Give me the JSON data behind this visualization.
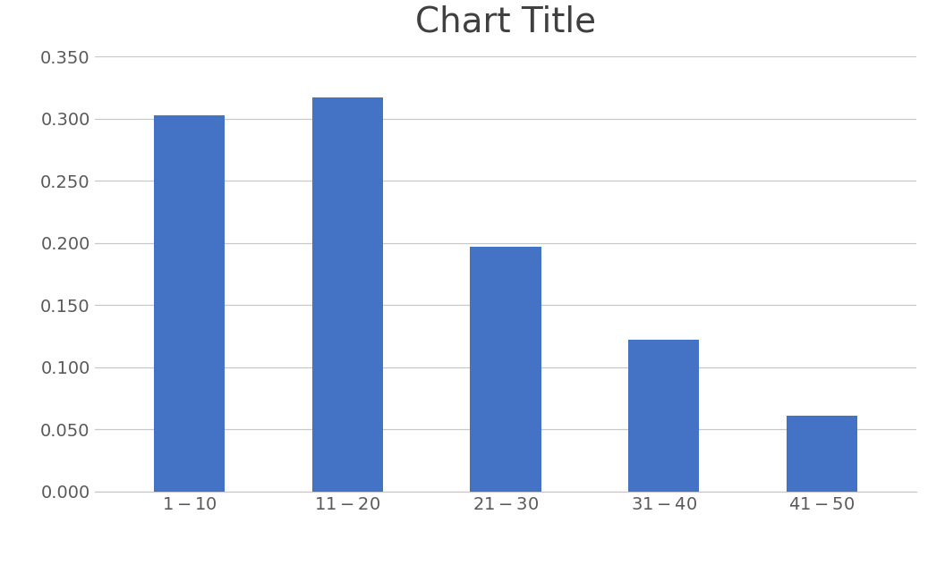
{
  "title": "Chart Title",
  "title_fontsize": 28,
  "title_color": "#404040",
  "categories": [
    "$1 - $10",
    "$11 - $20",
    "$21 - $30",
    "$31 - $40",
    "$41 - $50"
  ],
  "values": [
    0.303,
    0.317,
    0.197,
    0.122,
    0.061
  ],
  "bar_color": "#4472C4",
  "ylim": [
    0,
    0.35
  ],
  "yticks": [
    0.0,
    0.05,
    0.1,
    0.15,
    0.2,
    0.25,
    0.3,
    0.35
  ],
  "ytick_labels": [
    "0.000",
    "0.050",
    "0.100",
    "0.150",
    "0.200",
    "0.250",
    "0.300",
    "0.350"
  ],
  "background_color": "#FFFFFF",
  "grid_color": "#C8C8C8",
  "tick_color": "#595959",
  "tick_fontsize": 14,
  "bar_width": 0.45,
  "figsize": [
    10.56,
    6.32
  ],
  "dpi": 100
}
